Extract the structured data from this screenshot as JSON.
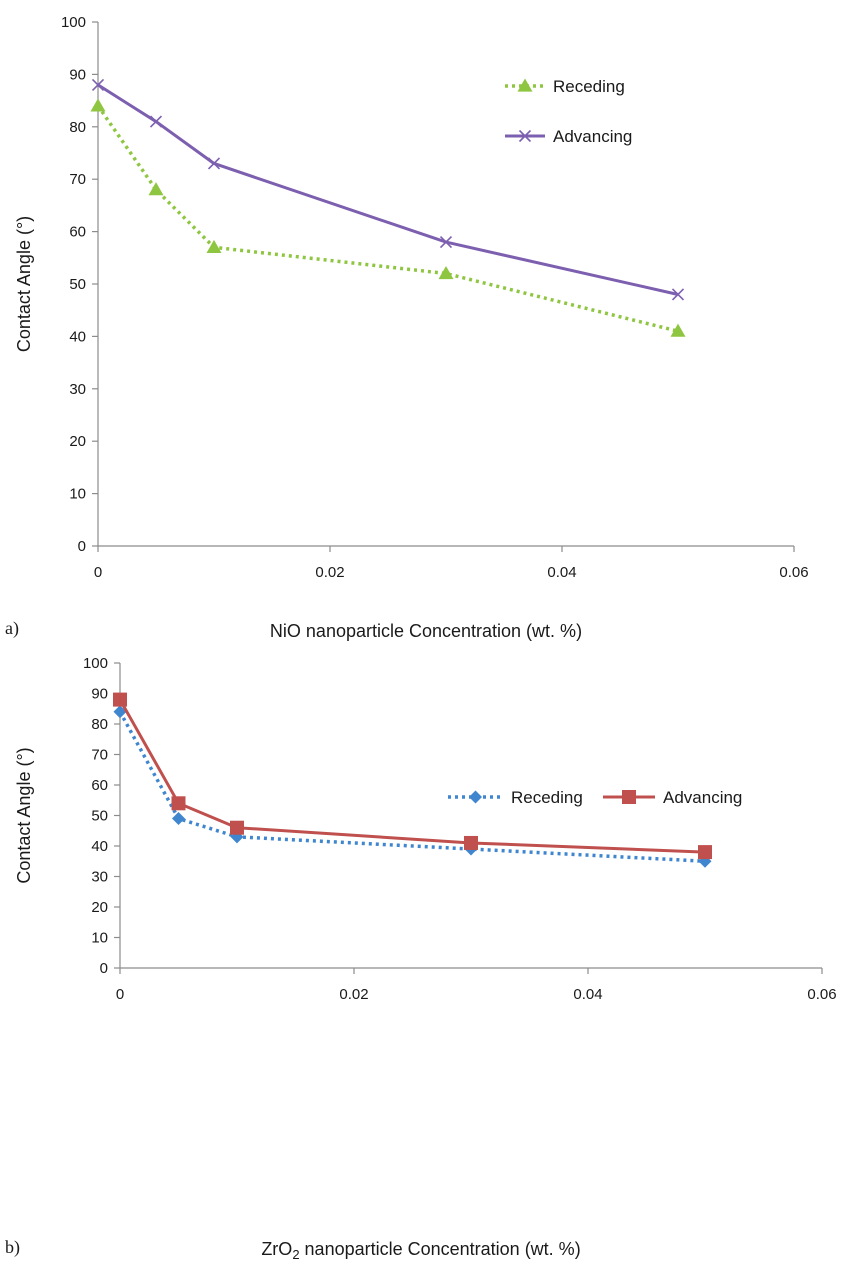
{
  "chart_data": [
    {
      "type": "line",
      "panel_label": "a)",
      "title": "",
      "xlabel": "NiO nanoparticle Concentration (wt. %)",
      "xlabel_parts": [
        "NiO nanoparticle Concentration (wt. %)"
      ],
      "ylabel": "Contact Angle (°)",
      "xlim": [
        0,
        0.06
      ],
      "ylim": [
        0,
        100
      ],
      "x_ticks": [
        0,
        0.02,
        0.04,
        0.06
      ],
      "x_tick_labels": [
        "0",
        "0.02",
        "0.04",
        "0.06"
      ],
      "y_ticks": [
        0,
        10,
        20,
        30,
        40,
        50,
        60,
        70,
        80,
        90,
        100
      ],
      "y_tick_labels": [
        "0",
        "10",
        "20",
        "30",
        "40",
        "50",
        "60",
        "70",
        "80",
        "90",
        "100"
      ],
      "grid": false,
      "legend": "top-right",
      "legend_layout": "vertical",
      "series": [
        {
          "name": "Receding",
          "color": "#8fc641",
          "line_style": "dotted",
          "marker": "triangle",
          "x": [
            0,
            0.005,
            0.01,
            0.03,
            0.05
          ],
          "y": [
            84,
            68,
            57,
            52,
            41
          ]
        },
        {
          "name": "Advancing",
          "color": "#7d5fb0",
          "line_style": "solid",
          "marker": "x",
          "x": [
            0,
            0.005,
            0.01,
            0.03,
            0.05
          ],
          "y": [
            88,
            81,
            73,
            58,
            48
          ]
        }
      ]
    },
    {
      "type": "line",
      "panel_label": "b)",
      "title": "",
      "xlabel": "ZrO2 nanoparticle Concentration (wt. %)",
      "xlabel_parts": [
        "ZrO",
        "2",
        " nanoparticle Concentration (wt. %)"
      ],
      "ylabel": "Contact Angle (°)",
      "xlim": [
        0,
        0.06
      ],
      "ylim": [
        0,
        100
      ],
      "x_ticks": [
        0,
        0.02,
        0.04,
        0.06
      ],
      "x_tick_labels": [
        "0",
        "0.02",
        "0.04",
        "0.06"
      ],
      "y_ticks": [
        0,
        10,
        20,
        30,
        40,
        50,
        60,
        70,
        80,
        90,
        100
      ],
      "y_tick_labels": [
        "0",
        "10",
        "20",
        "30",
        "40",
        "50",
        "60",
        "70",
        "80",
        "90",
        "100"
      ],
      "grid": false,
      "legend": "top-right",
      "legend_layout": "horizontal",
      "series": [
        {
          "name": "Receding",
          "color": "#3f86cf",
          "line_style": "dotted",
          "marker": "diamond",
          "x": [
            0,
            0.005,
            0.01,
            0.03,
            0.05
          ],
          "y": [
            84,
            49,
            43,
            39,
            35
          ]
        },
        {
          "name": "Advancing",
          "color": "#c0504d",
          "line_style": "solid",
          "marker": "square",
          "x": [
            0,
            0.005,
            0.01,
            0.03,
            0.05
          ],
          "y": [
            88,
            54,
            46,
            41,
            38
          ]
        }
      ]
    }
  ]
}
